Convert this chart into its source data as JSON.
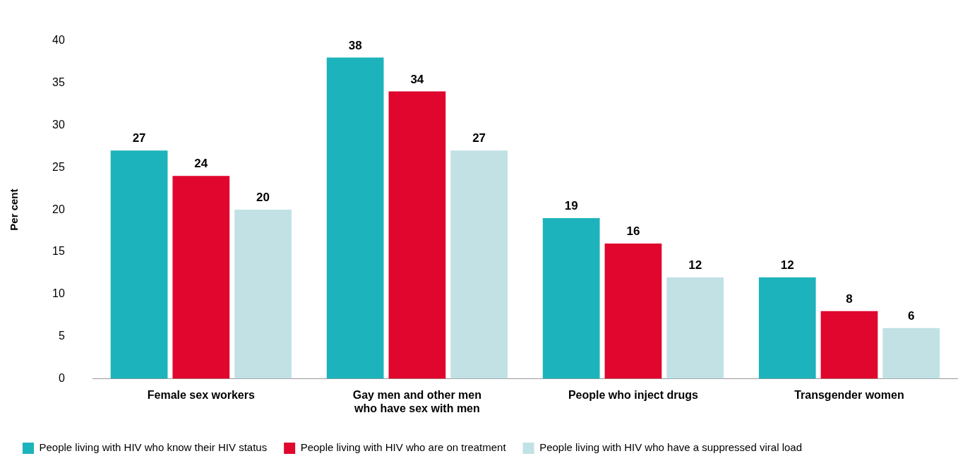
{
  "chart_data": {
    "type": "bar",
    "ylabel": "Per cent",
    "categories": [
      "Female sex workers",
      "Gay men and other men who have sex with men",
      "People who inject drugs",
      "Transgender women"
    ],
    "series": [
      {
        "name": "People living with HIV who know their HIV status",
        "color": "#1db3bc",
        "values": [
          27,
          38,
          19,
          12
        ]
      },
      {
        "name": "People living with HIV who are on treatment",
        "color": "#e0062d",
        "values": [
          24,
          34,
          16,
          8
        ]
      },
      {
        "name": "People living with HIV who have a suppressed viral load",
        "color": "#c1e1e5",
        "values": [
          20,
          27,
          12,
          6
        ]
      }
    ],
    "ylim": [
      0,
      40
    ],
    "yticks": [
      0,
      5,
      10,
      15,
      20,
      25,
      30,
      35,
      40
    ],
    "grid": false,
    "legend": "bottom left",
    "data_labels": true
  }
}
